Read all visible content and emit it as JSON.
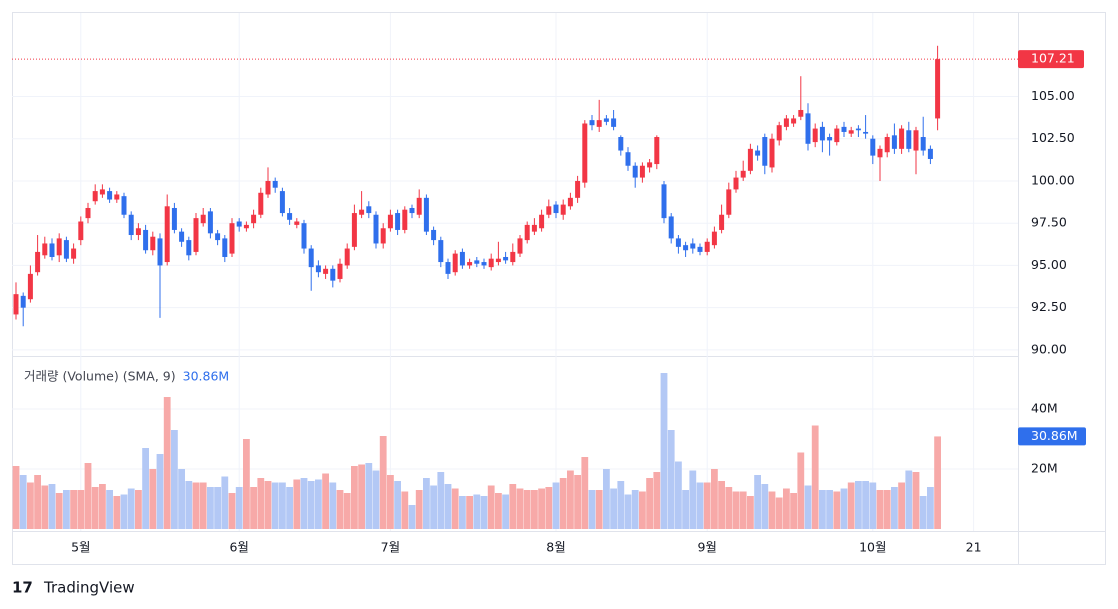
{
  "branding": "TradingView",
  "chart_data": [
    {
      "type": "candlestick",
      "categories": [
        null,
        null,
        null,
        null,
        null,
        null,
        null,
        null,
        null,
        "5월",
        null,
        null,
        null,
        null,
        null,
        null,
        null,
        null,
        null,
        null,
        null,
        null,
        null,
        null,
        null,
        null,
        null,
        null,
        null,
        null,
        null,
        "6월",
        null,
        null,
        null,
        null,
        null,
        null,
        null,
        null,
        null,
        null,
        null,
        null,
        null,
        null,
        null,
        null,
        null,
        null,
        null,
        null,
        "7월",
        null,
        null,
        null,
        null,
        null,
        null,
        null,
        null,
        null,
        null,
        null,
        null,
        null,
        null,
        null,
        null,
        null,
        null,
        null,
        null,
        null,
        null,
        "8월",
        null,
        null,
        null,
        null,
        null,
        null,
        null,
        null,
        null,
        null,
        null,
        null,
        null,
        null,
        null,
        null,
        null,
        null,
        null,
        null,
        "9월",
        null,
        null,
        null,
        null,
        null,
        null,
        null,
        null,
        null,
        null,
        null,
        null,
        null,
        null,
        null,
        null,
        null,
        null,
        null,
        null,
        null,
        null,
        "10월",
        null,
        null,
        null,
        null,
        null,
        null,
        null,
        null,
        null,
        null,
        null,
        null,
        null,
        "21"
      ],
      "open": [
        92.1,
        93.2,
        93.0,
        94.6,
        95.6,
        96.3,
        95.6,
        96.5,
        95.4,
        96.5,
        97.8,
        98.8,
        99.2,
        99.4,
        98.9,
        99.1,
        98.0,
        96.8,
        97.1,
        95.9,
        96.6,
        95.2,
        98.4,
        97.0,
        96.5,
        95.8,
        97.5,
        98.2,
        96.9,
        96.6,
        95.7,
        97.6,
        97.2,
        97.5,
        98.0,
        99.2,
        100.0,
        99.4,
        98.1,
        97.4,
        97.5,
        96.0,
        95.0,
        94.5,
        94.8,
        94.2,
        95.0,
        96.1,
        98.0,
        98.5,
        98.0,
        96.3,
        97.2,
        98.1,
        97.1,
        98.4,
        98.0,
        99.0,
        97.1,
        96.5,
        95.2,
        94.6,
        95.8,
        95.0,
        95.3,
        95.2,
        94.9,
        95.2,
        95.5,
        95.2,
        95.7,
        96.5,
        97.0,
        97.2,
        98.0,
        98.6,
        98.0,
        98.5,
        99.0,
        99.9,
        103.6,
        103.2,
        103.7,
        103.7,
        102.6,
        101.7,
        100.9,
        100.2,
        100.8,
        101.0,
        99.8,
        97.9,
        96.6,
        96.2,
        96.3,
        96.1,
        95.8,
        96.2,
        97.1,
        98.0,
        99.5,
        100.2,
        100.6,
        101.8,
        102.6,
        100.8,
        102.4,
        103.2,
        103.4,
        103.8,
        104.0,
        102.3,
        103.2,
        102.6,
        102.3,
        103.2,
        102.8,
        103.1,
        102.9,
        102.5,
        101.4,
        101.7,
        102.7,
        101.9,
        103.0,
        101.8,
        102.6,
        101.9,
        103.7,
        null,
        null,
        null,
        null,
        null
      ],
      "high": [
        94.0,
        93.4,
        95.0,
        96.8,
        96.7,
        96.6,
        96.9,
        96.7,
        96.3,
        97.9,
        98.7,
        99.8,
        99.8,
        99.6,
        99.4,
        99.3,
        98.2,
        97.5,
        97.4,
        97.0,
        96.9,
        99.2,
        98.7,
        97.2,
        96.7,
        98.1,
        98.4,
        98.4,
        97.1,
        96.8,
        97.8,
        97.8,
        97.6,
        98.3,
        99.6,
        100.8,
        100.2,
        99.6,
        98.4,
        97.8,
        97.7,
        96.2,
        95.3,
        95.0,
        95.0,
        95.4,
        96.3,
        98.6,
        99.4,
        98.8,
        98.2,
        97.5,
        98.3,
        98.3,
        98.5,
        98.6,
        99.5,
        99.2,
        97.3,
        96.7,
        95.4,
        95.9,
        96.0,
        95.4,
        95.5,
        95.4,
        95.7,
        96.4,
        95.8,
        96.3,
        96.8,
        97.6,
        97.8,
        98.3,
        98.9,
        98.8,
        98.9,
        99.3,
        100.3,
        103.6,
        103.9,
        104.8,
        103.9,
        104.2,
        102.7,
        102.0,
        101.1,
        101.1,
        101.3,
        102.7,
        100.0,
        98.1,
        96.8,
        96.4,
        96.6,
        96.3,
        96.6,
        97.3,
        98.6,
        99.9,
        100.6,
        101.2,
        102.2,
        102.1,
        102.8,
        102.8,
        103.5,
        103.9,
        103.9,
        106.2,
        104.6,
        103.4,
        103.5,
        102.8,
        103.3,
        103.5,
        103.2,
        103.3,
        103.9,
        102.7,
        102.1,
        102.8,
        103.4,
        103.3,
        103.5,
        103.2,
        103.8,
        102.1,
        108.0,
        null,
        null,
        null,
        null,
        null
      ],
      "low": [
        91.8,
        91.4,
        92.8,
        94.4,
        95.4,
        95.3,
        95.2,
        95.2,
        95.1,
        96.2,
        97.5,
        98.6,
        99.0,
        98.7,
        98.7,
        97.8,
        96.5,
        96.5,
        95.7,
        95.6,
        91.9,
        95.0,
        96.9,
        96.1,
        95.3,
        95.6,
        97.3,
        96.6,
        96.2,
        95.2,
        95.5,
        97.0,
        97.0,
        97.2,
        97.8,
        99.0,
        99.3,
        97.9,
        97.4,
        97.2,
        95.7,
        93.5,
        94.3,
        94.2,
        93.7,
        94.0,
        94.8,
        95.9,
        97.8,
        97.8,
        96.0,
        96.0,
        97.0,
        96.8,
        96.9,
        97.8,
        97.8,
        96.8,
        96.2,
        94.9,
        94.2,
        94.4,
        94.8,
        94.8,
        94.9,
        94.8,
        94.7,
        95.0,
        95.1,
        95.0,
        95.5,
        96.3,
        96.8,
        97.0,
        97.8,
        97.8,
        97.7,
        98.3,
        98.7,
        99.6,
        103.0,
        102.9,
        103.3,
        103.0,
        101.5,
        100.6,
        99.6,
        99.9,
        100.5,
        100.7,
        97.5,
        96.3,
        95.7,
        95.5,
        95.7,
        95.6,
        95.6,
        96.0,
        96.9,
        97.8,
        99.3,
        100.0,
        100.4,
        101.2,
        100.4,
        100.5,
        102.1,
        103.0,
        103.2,
        103.6,
        101.8,
        102.0,
        101.7,
        101.5,
        102.1,
        102.6,
        102.6,
        102.6,
        102.5,
        101.0,
        100.0,
        101.4,
        101.6,
        101.6,
        101.7,
        100.4,
        101.5,
        101.0,
        103.0,
        null,
        null,
        null,
        null,
        null
      ],
      "close": [
        93.3,
        92.5,
        94.5,
        95.8,
        96.3,
        95.5,
        96.6,
        95.4,
        96.0,
        97.6,
        98.4,
        99.4,
        99.5,
        98.9,
        99.2,
        98.0,
        96.8,
        97.2,
        95.9,
        96.7,
        95.0,
        98.5,
        97.1,
        96.4,
        95.6,
        97.8,
        98.0,
        96.9,
        96.5,
        95.5,
        97.5,
        97.3,
        97.4,
        98.0,
        99.3,
        100.0,
        99.6,
        98.1,
        97.7,
        97.6,
        96.0,
        94.9,
        94.6,
        94.8,
        94.1,
        95.1,
        96.0,
        98.1,
        98.3,
        98.1,
        96.3,
        97.2,
        98.0,
        97.1,
        98.3,
        98.1,
        99.0,
        97.0,
        96.5,
        95.2,
        94.5,
        95.7,
        95.0,
        95.2,
        95.1,
        95.0,
        95.4,
        95.4,
        95.3,
        95.8,
        96.6,
        97.4,
        97.4,
        98.0,
        98.5,
        98.1,
        98.6,
        99.0,
        100.0,
        103.4,
        103.3,
        103.6,
        103.5,
        103.2,
        101.8,
        100.9,
        100.2,
        100.9,
        101.1,
        102.6,
        97.8,
        96.6,
        96.1,
        95.9,
        96.0,
        95.8,
        96.4,
        97.0,
        98.0,
        99.5,
        100.2,
        100.6,
        101.9,
        101.5,
        100.9,
        102.5,
        103.3,
        103.7,
        103.7,
        104.2,
        102.2,
        103.1,
        102.4,
        102.4,
        103.1,
        102.9,
        103.0,
        103.0,
        102.8,
        101.5,
        101.9,
        102.6,
        101.9,
        103.1,
        101.9,
        103.0,
        101.8,
        101.3,
        107.21,
        null,
        null,
        null,
        null,
        null
      ],
      "up_color": "#f23645",
      "down_color": "#2f6fec",
      "ylim": [
        89.64,
        109.94
      ],
      "yticks": [
        {
          "value": 90,
          "label": "90.00"
        },
        {
          "value": 92.5,
          "label": "92.50"
        },
        {
          "value": 95,
          "label": "95.00"
        },
        {
          "value": 97.5,
          "label": "97.50"
        },
        {
          "value": 100,
          "label": "100.00"
        },
        {
          "value": 102.5,
          "label": "102.50"
        },
        {
          "value": 105,
          "label": "105.00"
        }
      ],
      "grid": true
    },
    {
      "type": "bar",
      "title": "거래량 (Volume) (SMA, 9)",
      "values": [
        21,
        18,
        15.5,
        18,
        14.5,
        15,
        12,
        13,
        13,
        13,
        22,
        14,
        15,
        13,
        11,
        11.5,
        13.5,
        13,
        27,
        20,
        25,
        44,
        33,
        20,
        16,
        15.5,
        15.5,
        14,
        14,
        17.5,
        12,
        14,
        30,
        14,
        17,
        16,
        15.5,
        15.5,
        14,
        16.5,
        17,
        16,
        16.5,
        18.5,
        15.5,
        13,
        12,
        21,
        21.5,
        22,
        19.5,
        31,
        18,
        16,
        12.5,
        8,
        13,
        17,
        14.5,
        19,
        15,
        13.5,
        11,
        11,
        11.5,
        11,
        14.5,
        12,
        11.5,
        15,
        13.5,
        13,
        13,
        13.5,
        14,
        15.5,
        17,
        19.5,
        18,
        24,
        13,
        13,
        20,
        13.5,
        16,
        11.5,
        13,
        12.5,
        17,
        19,
        52,
        33,
        22.5,
        13,
        19.5,
        15.5,
        15.5,
        20,
        16,
        14,
        12.5,
        12.5,
        11,
        18,
        15,
        12.5,
        10.5,
        13.5,
        12,
        25.5,
        14.5,
        34.5,
        13,
        13,
        12.5,
        13.5,
        15.5,
        16,
        16,
        15.5,
        13,
        13,
        14,
        15.5,
        19.5,
        19,
        11,
        14,
        30.86,
        null,
        null,
        null,
        null,
        null
      ],
      "last_value_label": "30.86M",
      "up_color": "#f7a9a8",
      "down_color": "#b3c8f5",
      "label_color": "#2f6fec",
      "ylim": [
        0,
        57.67
      ],
      "yticks": [
        {
          "value": 20,
          "label": "20M"
        },
        {
          "value": 40,
          "label": "40M"
        }
      ],
      "grid": true
    }
  ]
}
